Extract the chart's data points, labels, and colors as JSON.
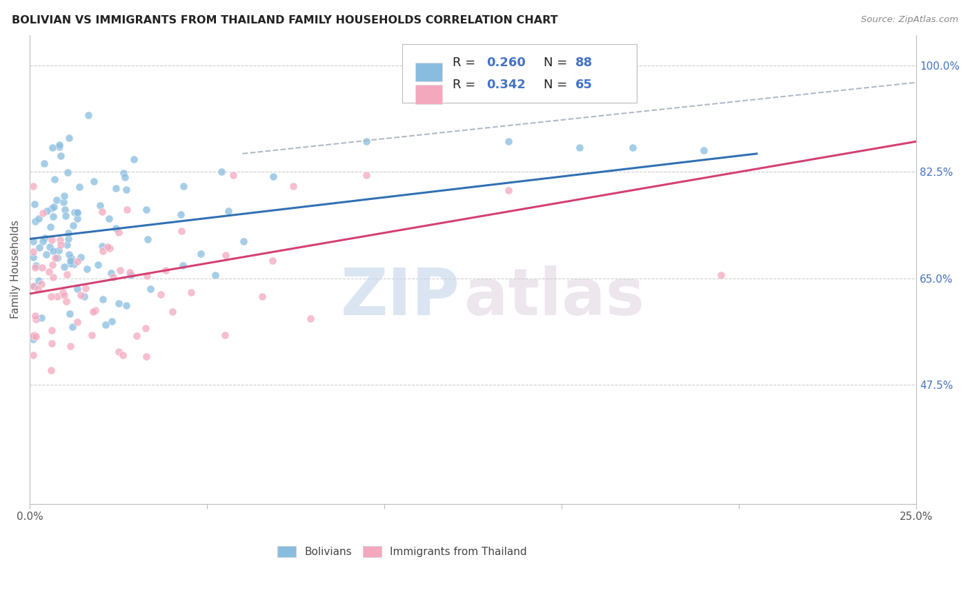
{
  "title": "BOLIVIAN VS IMMIGRANTS FROM THAILAND FAMILY HOUSEHOLDS CORRELATION CHART",
  "source": "Source: ZipAtlas.com",
  "ylabel": "Family Households",
  "ytick_labels": [
    "100.0%",
    "82.5%",
    "65.0%",
    "47.5%"
  ],
  "ytick_values": [
    1.0,
    0.825,
    0.65,
    0.475
  ],
  "legend_blue_r": "R = 0.260",
  "legend_blue_n": "N = 88",
  "legend_pink_r": "R = 0.342",
  "legend_pink_n": "N = 65",
  "blue_color": "#89bde0",
  "pink_color": "#f4a8be",
  "blue_line_color": "#3070b3",
  "pink_line_color": "#d44070",
  "dashed_line_color": "#b0b8c8",
  "background_color": "#ffffff",
  "grid_color": "#cccccc",
  "title_color": "#222222",
  "axis_label_color": "#555555",
  "right_tick_color": "#4472c4",
  "text_r_color": "#222222",
  "watermark_zip": "ZIP",
  "watermark_atlas": "atlas",
  "xlim": [
    0.0,
    0.25
  ],
  "ylim": [
    0.28,
    1.05
  ],
  "blue_trend_x": [
    0.0,
    0.205
  ],
  "blue_trend_y": [
    0.715,
    0.855
  ],
  "pink_trend_x": [
    0.0,
    0.25
  ],
  "pink_trend_y": [
    0.625,
    0.875
  ],
  "dashed_trend_x": [
    0.06,
    0.25
  ],
  "dashed_trend_y": [
    0.855,
    0.972
  ],
  "xtick_positions": [
    0.0,
    0.05,
    0.1,
    0.15,
    0.2,
    0.25
  ],
  "xtick_labels": [
    "0.0%",
    "",
    "",
    "",
    "",
    "25.0%"
  ]
}
